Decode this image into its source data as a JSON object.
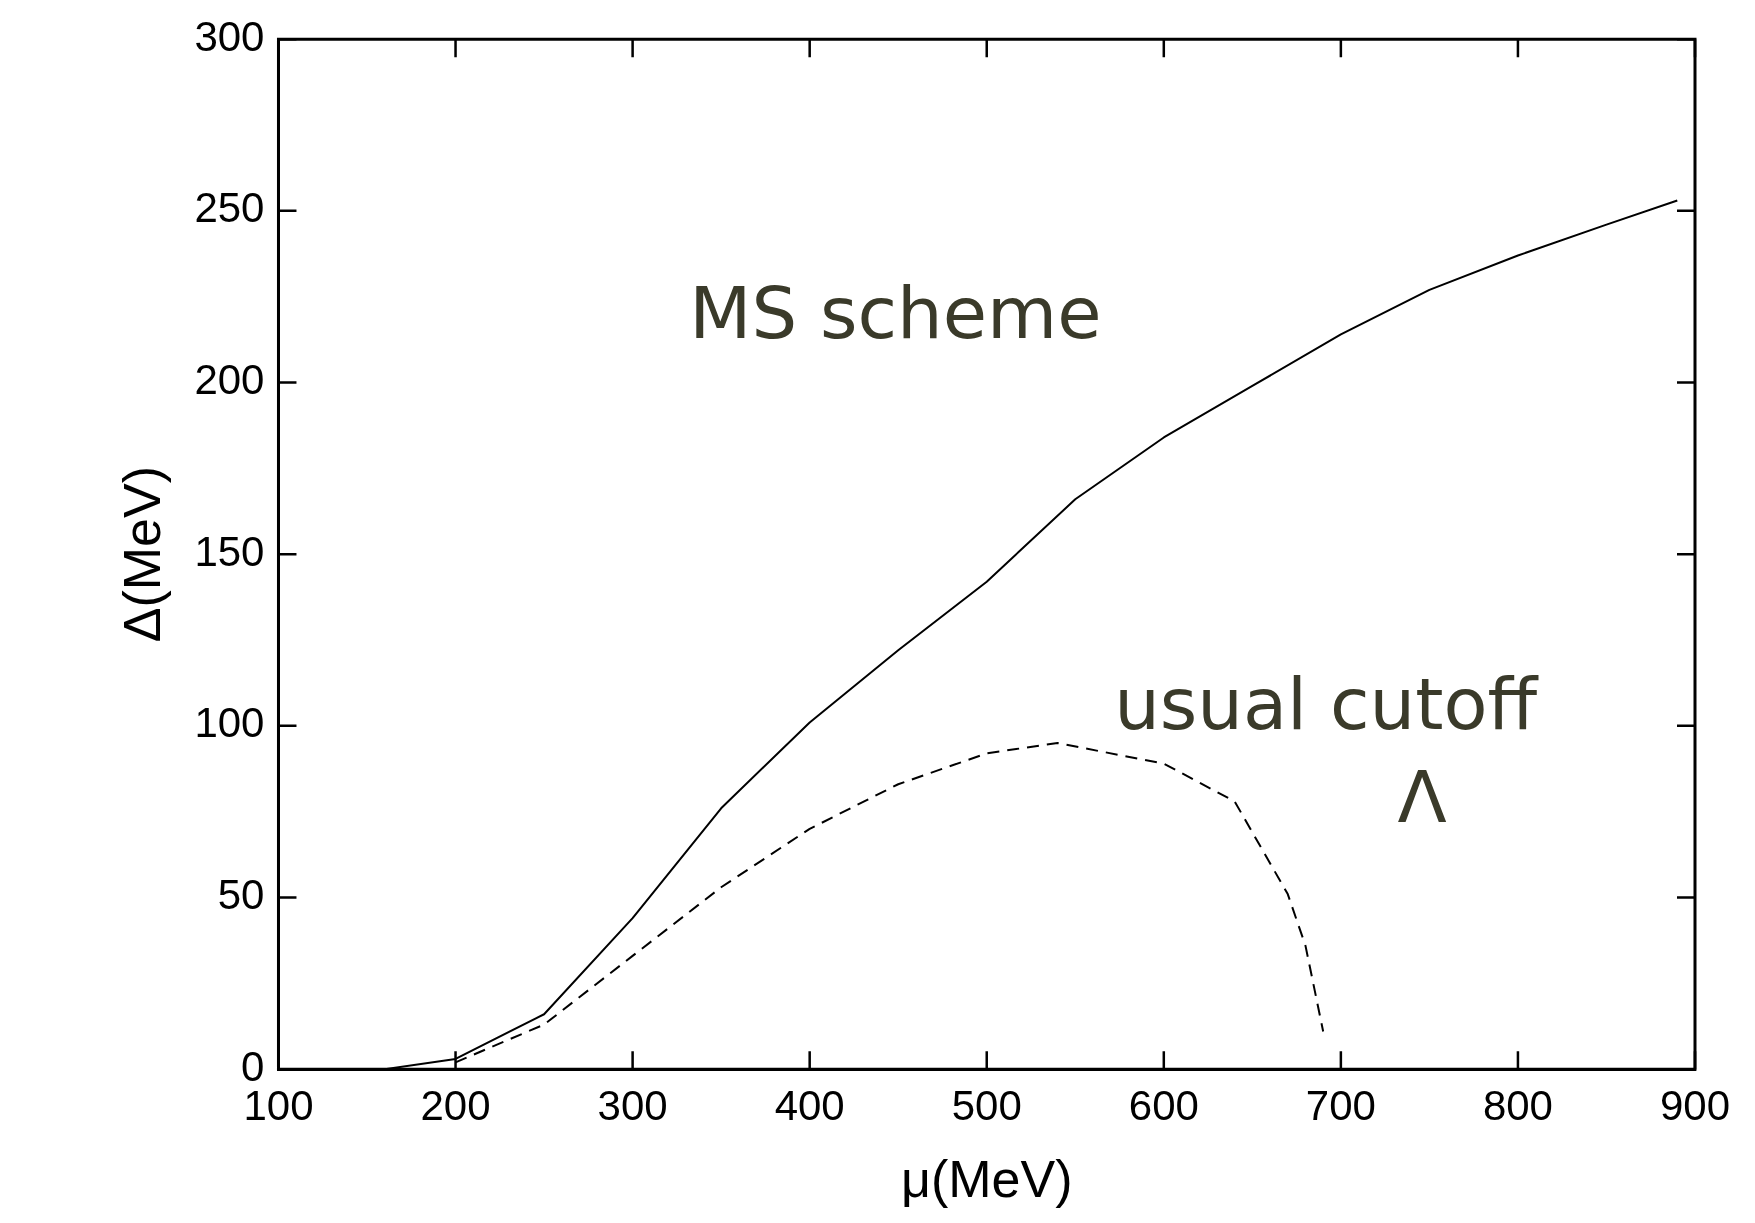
{
  "chart_data": {
    "type": "line",
    "xlabel": "μ(MeV)",
    "ylabel": "Δ(MeV)",
    "xlim": [
      100,
      900
    ],
    "xticks": [
      100,
      200,
      300,
      400,
      500,
      600,
      700,
      800,
      900
    ],
    "ylim": [
      0,
      300
    ],
    "yticks": [
      0,
      50,
      100,
      150,
      200,
      250,
      300
    ],
    "grid": false,
    "legend": false,
    "marker": "none",
    "series": [
      {
        "color": "#000000",
        "line_style": "solid",
        "x": [
          100,
          160,
          200,
          250,
          300,
          350,
          400,
          450,
          500,
          550,
          600,
          650,
          700,
          750,
          800,
          850,
          890
        ],
        "values": [
          0,
          0,
          3,
          16,
          44,
          76,
          101,
          122,
          142,
          166,
          184,
          199,
          214,
          227,
          237,
          246,
          253
        ]
      },
      {
        "color": "#000000",
        "line_style": "dashed",
        "x": [
          200,
          250,
          300,
          350,
          400,
          450,
          500,
          540,
          600,
          640,
          670,
          680,
          690
        ],
        "values": [
          2,
          13,
          33,
          53,
          70,
          83,
          92,
          95,
          89,
          78,
          51,
          36,
          11
        ]
      }
    ],
    "annotations": [
      "MS scheme",
      "usual cutoff",
      "Λ"
    ]
  }
}
